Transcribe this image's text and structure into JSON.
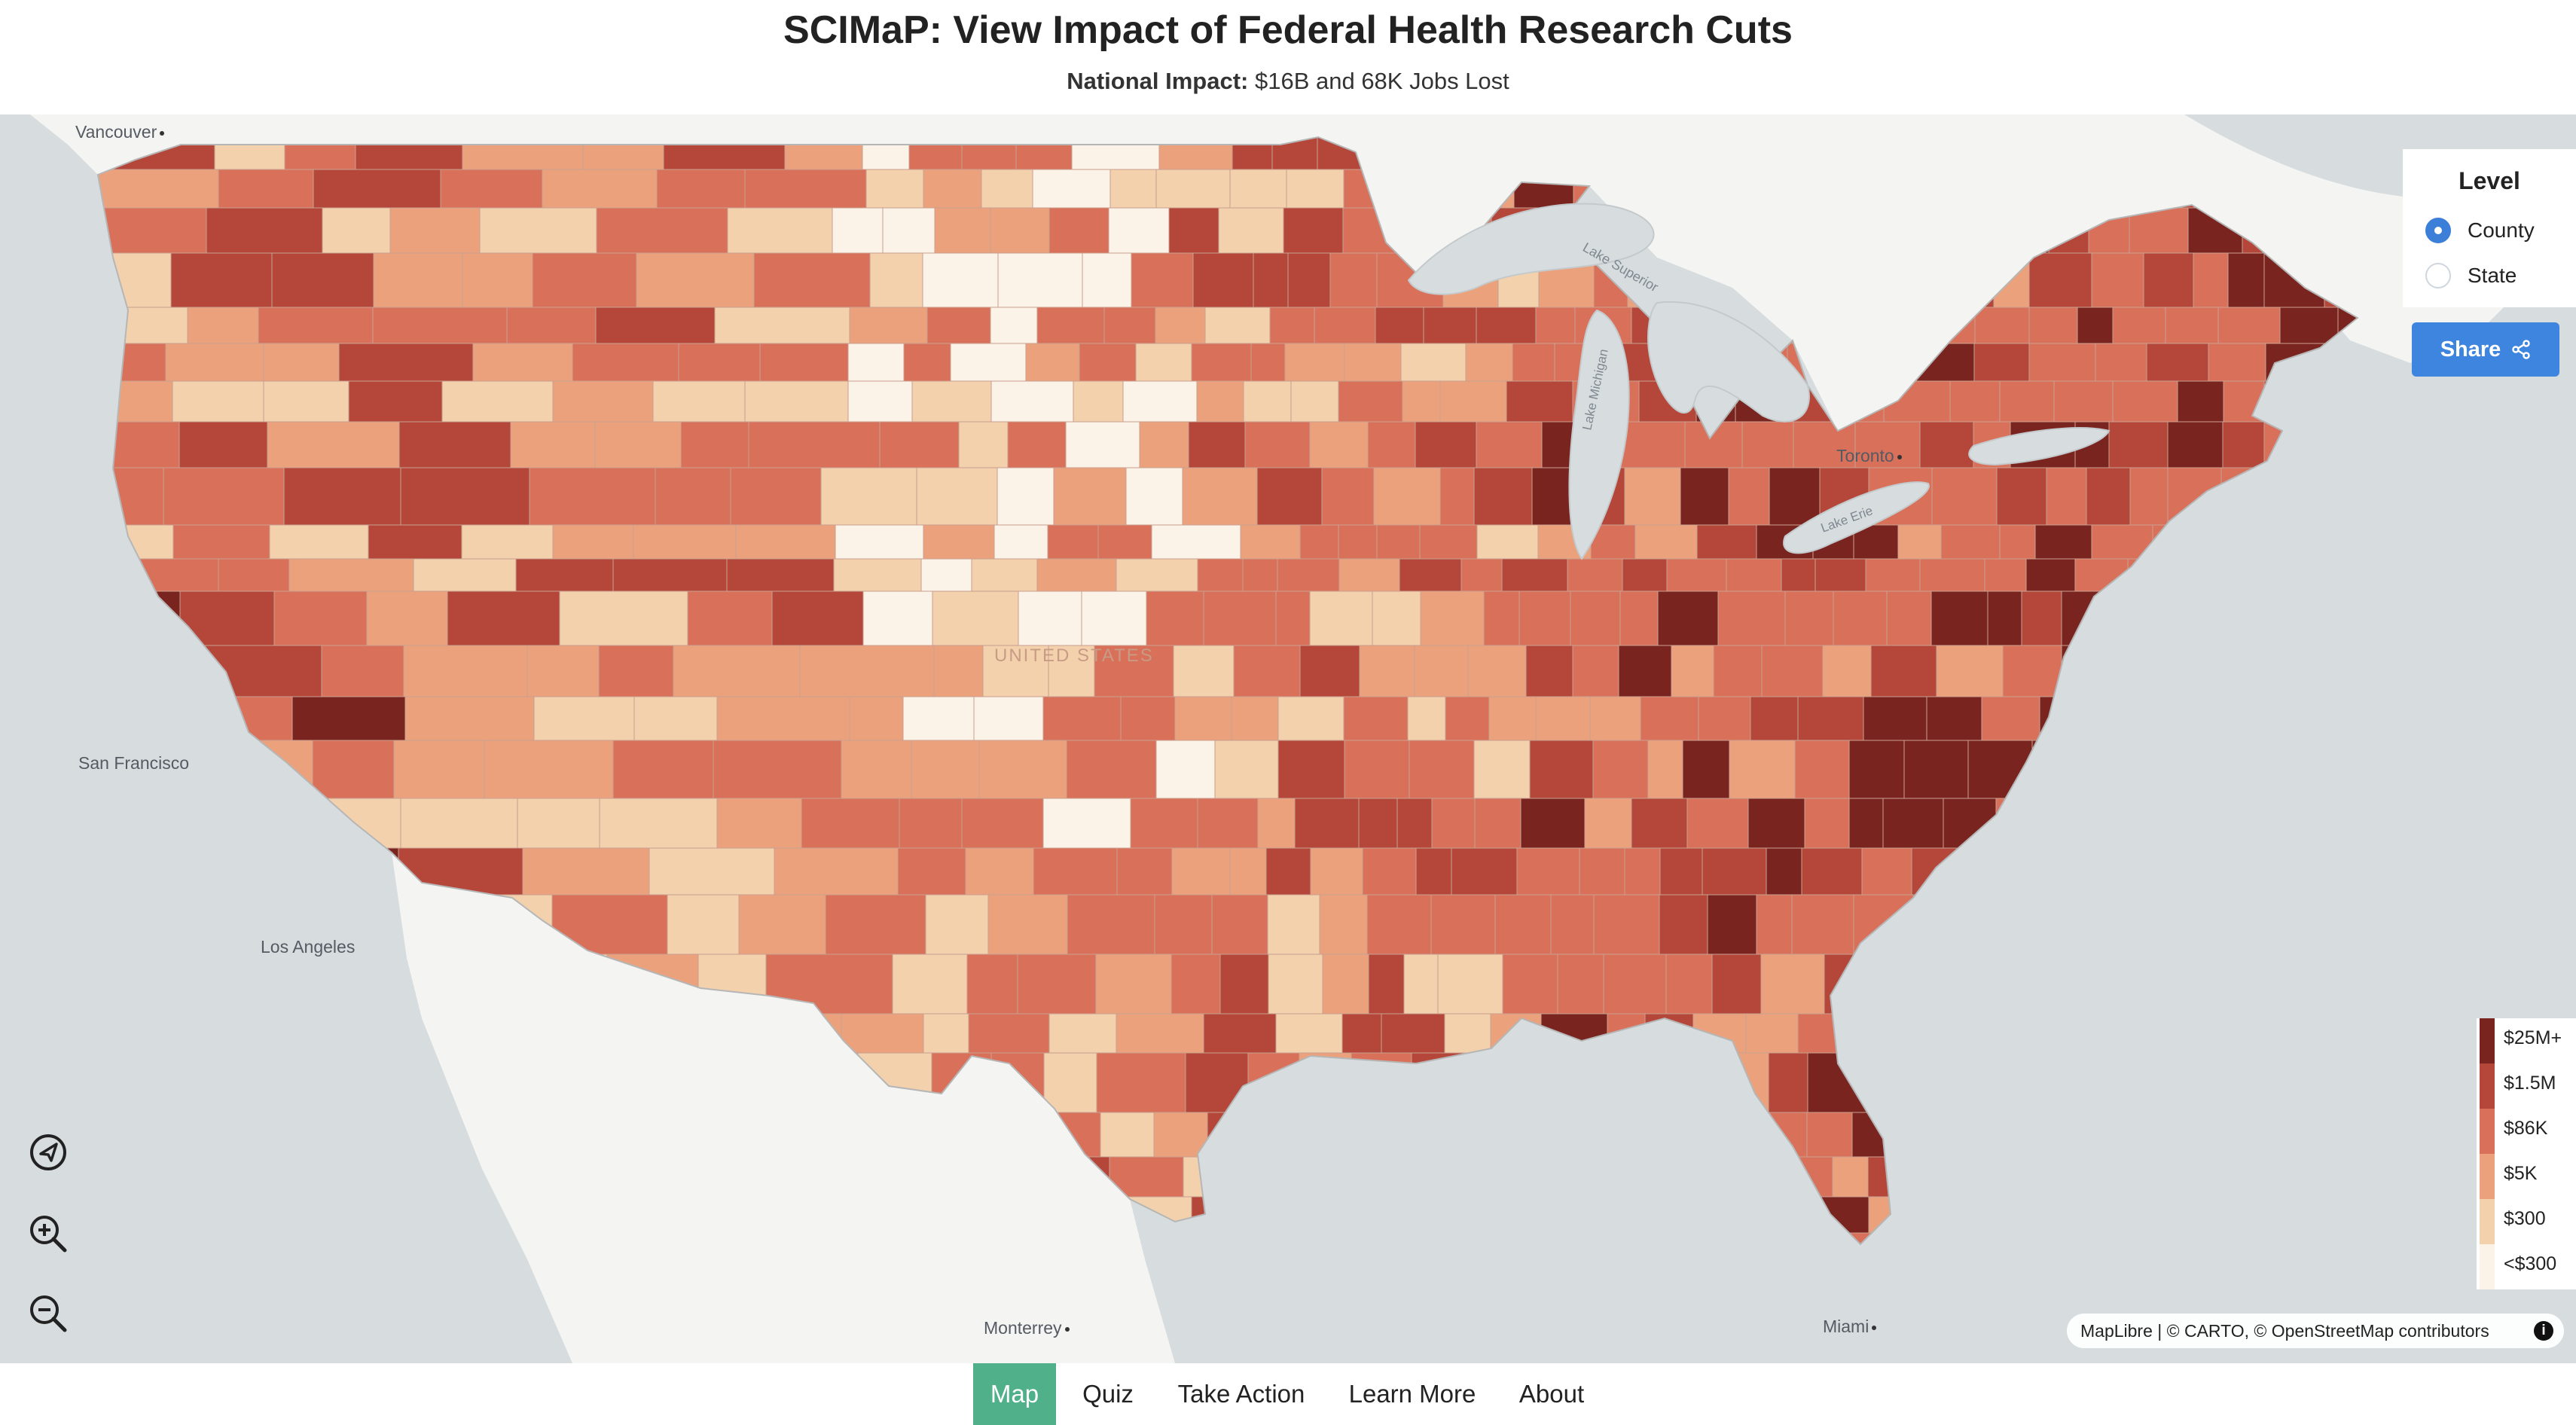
{
  "header": {
    "title": "SCIMaP: View Impact of Federal Health Research Cuts",
    "subtitle_label": "National Impact:",
    "subtitle_value": " $16B and 68K Jobs Lost"
  },
  "map": {
    "cities": [
      "Vancouver",
      "San Francisco",
      "Los Angeles",
      "Monterrey",
      "Toronto",
      "Miami"
    ],
    "water_labels": [
      "Lake Superior",
      "Lake Michigan",
      "Lake Erie"
    ],
    "country_label": "UNITED STATES",
    "colors": {
      "water": "#d7dcdf",
      "land": "#f4f4f2",
      "c5": "#7a2420",
      "c4": "#b4473a",
      "c3": "#d9705a",
      "c2": "#eba27c",
      "c1": "#f4d1ad",
      "c0": "#fbf2e8"
    }
  },
  "level_panel": {
    "title": "Level",
    "options": [
      {
        "label": "County",
        "checked": true
      },
      {
        "label": "State",
        "checked": false
      }
    ]
  },
  "share": {
    "label": "Share",
    "icon": "share-icon"
  },
  "legend": {
    "items": [
      {
        "label": "$25M+",
        "color": "#7a2420"
      },
      {
        "label": "$1.5M",
        "color": "#b4473a"
      },
      {
        "label": "$86K",
        "color": "#d9705a"
      },
      {
        "label": "$5K",
        "color": "#eba27c"
      },
      {
        "label": "$300",
        "color": "#f4d1ad"
      },
      {
        "label": "<$300",
        "color": "#fbf2e8"
      }
    ]
  },
  "controls": {
    "locate": "navigation-arrow-icon",
    "zoom_in": "zoom-in-icon",
    "zoom_out": "zoom-out-icon"
  },
  "attribution": "MapLibre | © CARTO, © OpenStreetMap contributors",
  "nav": {
    "items": [
      {
        "label": "Map",
        "active": true
      },
      {
        "label": "Quiz",
        "active": false
      },
      {
        "label": "Take Action",
        "active": false
      },
      {
        "label": "Learn More",
        "active": false
      },
      {
        "label": "About",
        "active": false
      }
    ]
  }
}
